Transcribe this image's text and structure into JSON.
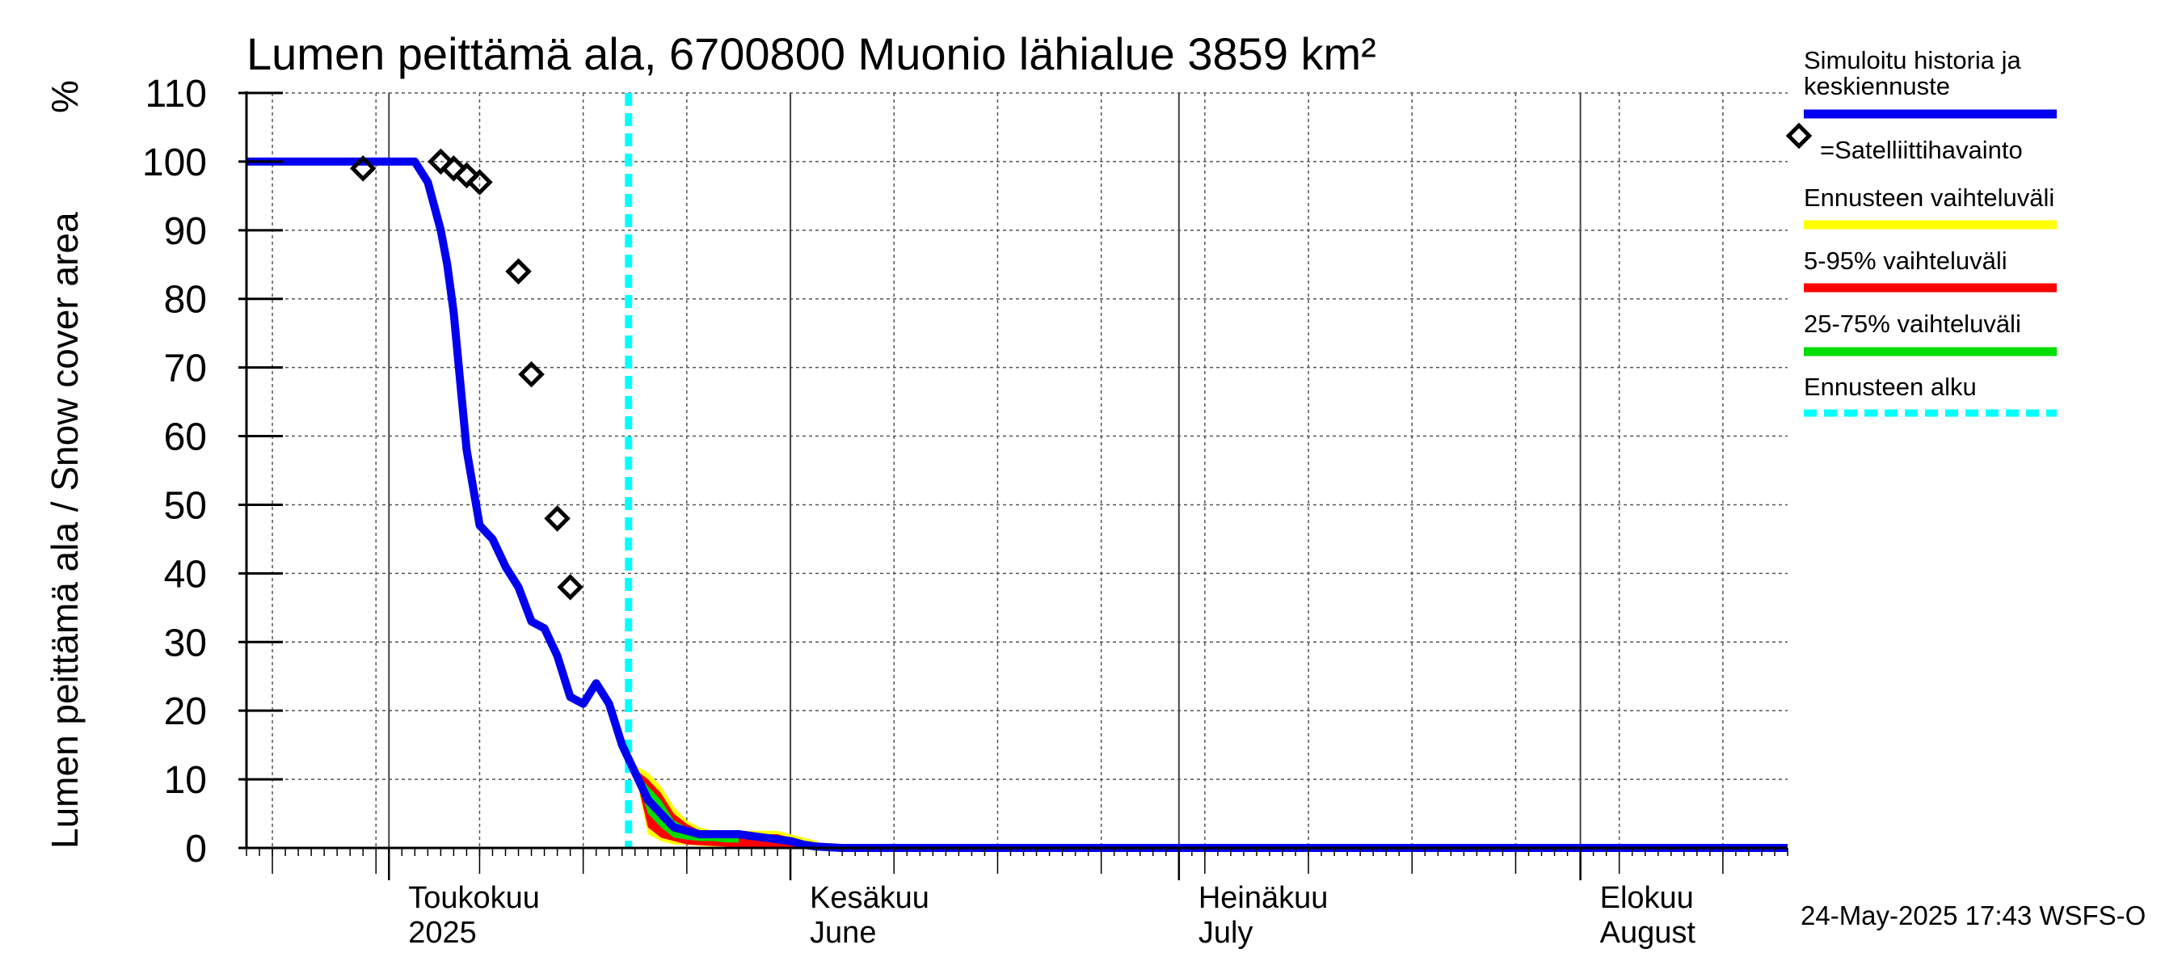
{
  "chart_data": {
    "type": "line",
    "title": "Lumen peittämä ala, 6700800 Muonio lähialue 3859 km²",
    "ylabel": "Lumen peittämä ala / Snow cover area",
    "yunit": "%",
    "ylim": [
      0,
      110
    ],
    "yticks": [
      0,
      10,
      20,
      30,
      40,
      50,
      60,
      70,
      80,
      90,
      100,
      110
    ],
    "x_range_days": [
      0,
      119
    ],
    "month_labels": [
      {
        "day": 11,
        "fi": "Toukokuu",
        "en": "2025"
      },
      {
        "day": 42,
        "fi": "Kesäkuu",
        "en": "June"
      },
      {
        "day": 72,
        "fi": "Heinäkuu",
        "en": "July"
      },
      {
        "day": 103,
        "fi": "Elokuu",
        "en": "August"
      }
    ],
    "month_boundaries": [
      11,
      42,
      72,
      103
    ],
    "forecast_start_day": 29.5,
    "simulated": {
      "name": "Simuloitu historia ja keskiennuste",
      "color": "#0000ee",
      "x": [
        0,
        6,
        12,
        13,
        14,
        15,
        15.5,
        16,
        17,
        18,
        19,
        19.5,
        20,
        21,
        22,
        23,
        24,
        25,
        26,
        27,
        28,
        29,
        30,
        31,
        32,
        33,
        34,
        35,
        36,
        37,
        38,
        40,
        42,
        43,
        44,
        46,
        119
      ],
      "y": [
        100,
        100,
        100,
        100,
        97,
        90,
        85,
        78,
        58,
        47,
        45,
        43,
        41,
        38,
        33,
        32,
        28,
        22,
        21,
        24,
        21,
        15,
        11,
        7,
        5,
        3,
        2.5,
        2,
        2,
        2,
        2,
        1.5,
        1,
        0.5,
        0.2,
        0,
        0
      ]
    },
    "observations": {
      "name": "=Satelliittihavainto",
      "x": [
        9,
        15,
        16,
        17,
        18,
        21,
        22,
        24,
        25
      ],
      "y": [
        99,
        100,
        99,
        98,
        97,
        84,
        69,
        48,
        38
      ]
    },
    "band_yellow": {
      "name": "Ennusteen vaihteluväli",
      "color": "#ffff00",
      "x": [
        30,
        31,
        32,
        33,
        34,
        35,
        36,
        37,
        38,
        39,
        40,
        41,
        42,
        43,
        44,
        45
      ],
      "upper": [
        12,
        11,
        9,
        6,
        4,
        3,
        2.5,
        2.5,
        2.5,
        2.5,
        2.5,
        2.5,
        2,
        1.5,
        1,
        0
      ],
      "lower": [
        11,
        2,
        1,
        0.5,
        0.5,
        0.3,
        0.2,
        0.2,
        0,
        0,
        0,
        0,
        0,
        0,
        0,
        0
      ]
    },
    "band_red": {
      "name": "5-95% vaihteluväli",
      "color": "#ff0000",
      "x": [
        30,
        31,
        32,
        33,
        34,
        35,
        36,
        37,
        38,
        39,
        40,
        41,
        42,
        43,
        44,
        45
      ],
      "upper": [
        11.5,
        10,
        8,
        5,
        3.5,
        2.5,
        2.2,
        2.2,
        2.2,
        2.2,
        2,
        2,
        1.5,
        1,
        0.5,
        0
      ],
      "lower": [
        11,
        3,
        1.5,
        1,
        0.5,
        0.4,
        0.3,
        0.2,
        0,
        0,
        0,
        0,
        0,
        0,
        0,
        0
      ]
    },
    "band_green": {
      "name": "25-75% vaihteluväli",
      "color": "#00dd00",
      "x": [
        30,
        31,
        32,
        33,
        34,
        35,
        36,
        37,
        38
      ],
      "upper": [
        11,
        9,
        7,
        4,
        3,
        2.5,
        2.2,
        2,
        1.8
      ],
      "lower": [
        11,
        5,
        3,
        1.5,
        1.2,
        1,
        1,
        0.8,
        0.8
      ]
    },
    "forecast_start_name": "Ennusteen alku"
  },
  "legend": {
    "sim_line1": "Simuloitu historia ja",
    "sim_line2": "keskiennuste",
    "obs": "=Satelliittihavainto",
    "yellow": "Ennusteen vaihteluväli",
    "red": "5-95% vaihteluväli",
    "green": "25-75% vaihteluväli",
    "cyan": "Ennusteen alku"
  },
  "footer": "24-May-2025 17:43 WSFS-O",
  "colors": {
    "sim": "#0000ee",
    "cyan": "#00ffff",
    "yellow": "#ffff00",
    "red": "#ff0000",
    "green": "#00dd00"
  }
}
